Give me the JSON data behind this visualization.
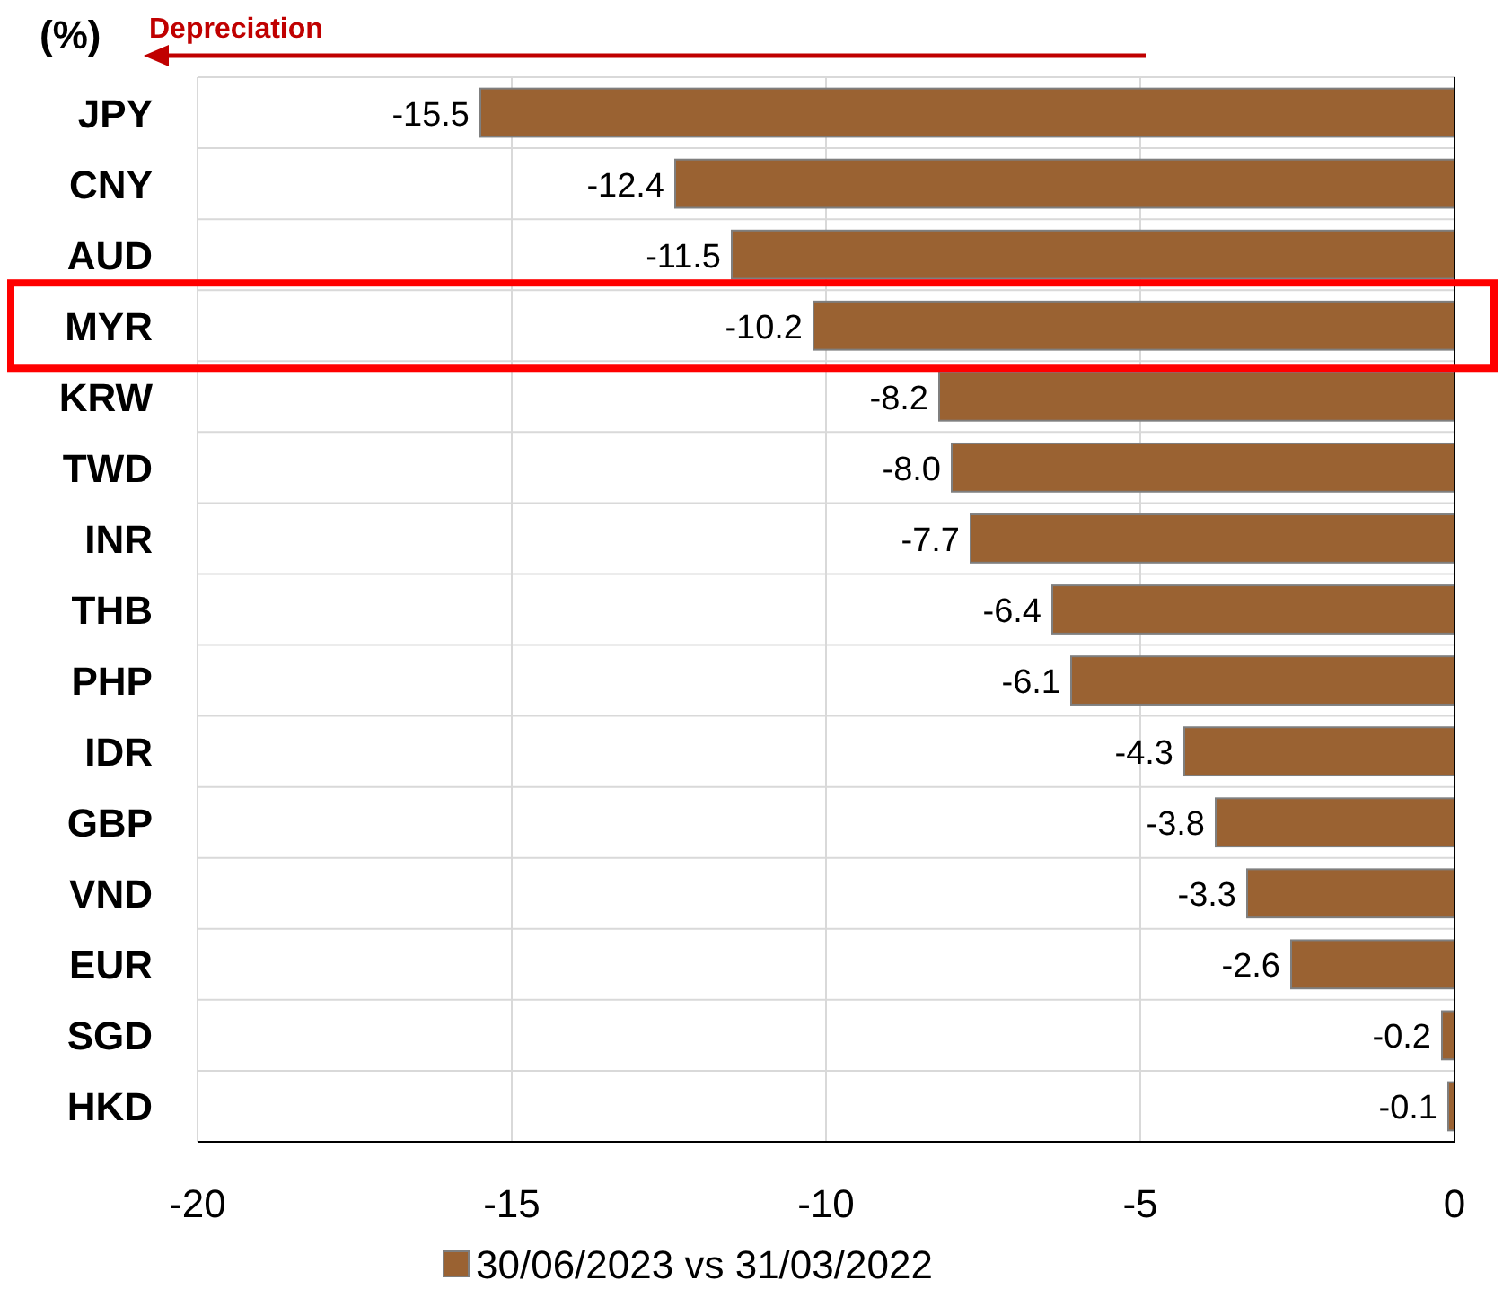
{
  "chart_data": {
    "type": "bar",
    "orientation": "horizontal",
    "categories": [
      "JPY",
      "CNY",
      "AUD",
      "MYR",
      "KRW",
      "TWD",
      "INR",
      "THB",
      "PHP",
      "IDR",
      "GBP",
      "VND",
      "EUR",
      "SGD",
      "HKD"
    ],
    "series": [
      {
        "name": "30/06/2023 vs 31/03/2022",
        "color": "#9a6232",
        "values": [
          -15.5,
          -12.4,
          -11.5,
          -10.2,
          -8.2,
          -8.0,
          -7.7,
          -6.4,
          -6.1,
          -4.3,
          -3.8,
          -3.3,
          -2.6,
          -0.2,
          -0.1
        ],
        "value_labels": [
          "-15.5",
          "-12.4",
          "-11.5",
          "-10.2",
          "-8.2",
          "-8.0",
          "-7.7",
          "-6.4",
          "-6.1",
          "-4.3",
          "-3.8",
          "-3.3",
          "-2.6",
          "-0.2",
          "-0.1"
        ]
      }
    ],
    "xlim": [
      -20,
      0
    ],
    "xticks": [
      -20,
      -15,
      -10,
      -5,
      0
    ],
    "grid": true,
    "legend": "bottom",
    "annotations": [
      "(%)",
      "Depreciation"
    ]
  }
}
